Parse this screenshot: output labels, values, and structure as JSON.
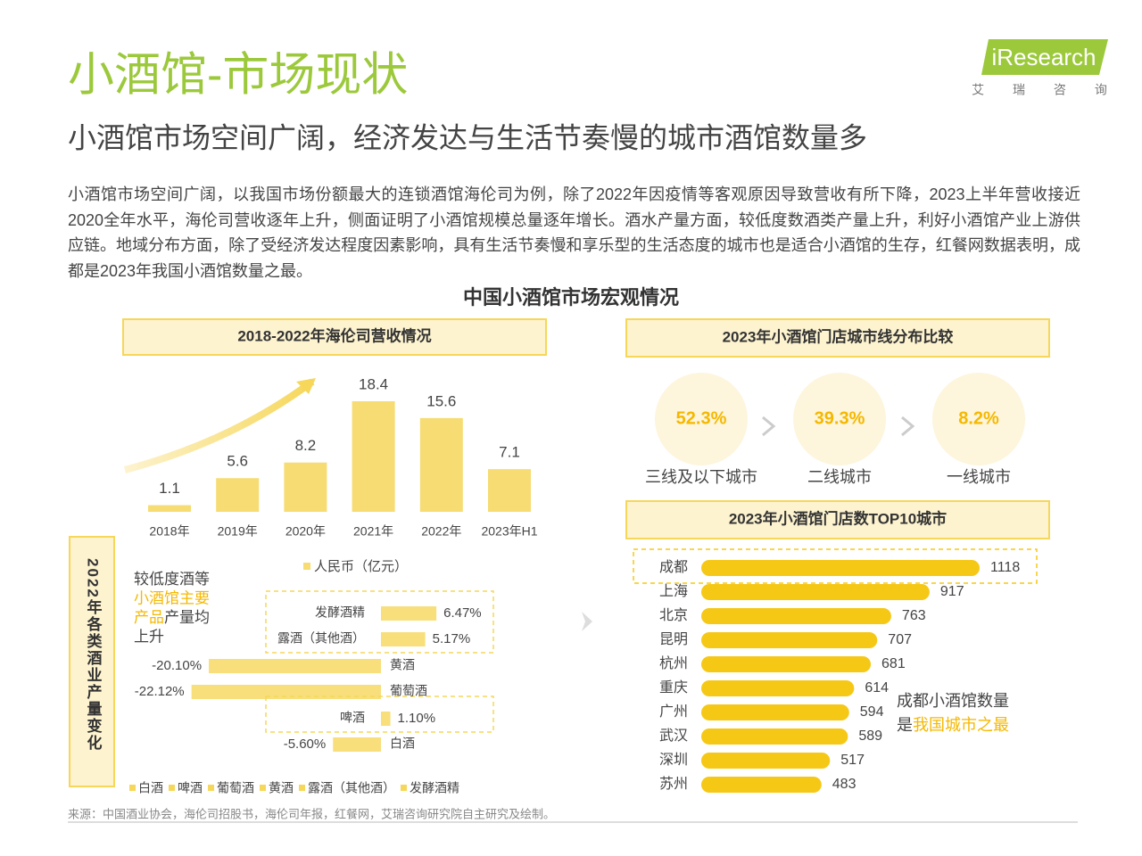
{
  "header": {
    "title": "小酒馆-市场现状",
    "subtitle": "小酒馆市场空间广阔，经济发达与生活节奏慢的城市酒馆数量多",
    "logo": "iResearch",
    "logo_cn": "艾 瑞 咨 询"
  },
  "intro": "小酒馆市场空间广阔，以我国市场份额最大的连锁酒馆海伦司为例，除了2022年因疫情等客观原因导致营收有所下降，2023上半年营收接近2020全年水平，海伦司营收逐年上升，侧面证明了小酒馆规模总量逐年增长。酒水产量方面，较低度数酒类产量上升，利好小酒馆产业上游供应链。地域分布方面，除了受经济发达程度因素影响，具有生活节奏慢和享乐型的生活态度的城市也是适合小酒馆的生存，红餐网数据表明，成都是2023年我国小酒馆数量之最。",
  "section_title": "中国小酒馆市场宏观情况",
  "source": "来源：中国酒业协会，海伦司招股书，海伦司年报，红餐网，艾瑞咨询研究院自主研究及绘制。",
  "chart_data": [
    {
      "type": "bar",
      "title": "2018-2022年海伦司营收情况",
      "categories": [
        "2018年",
        "2019年",
        "2020年",
        "2021年",
        "2022年",
        "2023年H1"
      ],
      "series": [
        {
          "name": "人民币（亿元）",
          "color": "#f6dc72",
          "values": [
            1.1,
            5.6,
            8.2,
            18.4,
            15.6,
            7.1
          ]
        }
      ]
    },
    {
      "type": "diverging_bar",
      "title": "2022年各类酒业产量变化",
      "categories": [
        "发酵酒精",
        "露酒（其他酒）",
        "黄酒",
        "葡萄酒",
        "啤酒",
        "白酒"
      ],
      "values": [
        6.47,
        5.17,
        -20.1,
        -22.12,
        1.1,
        -5.6
      ],
      "value_labels": [
        "6.47%",
        "5.17%",
        "-20.10%",
        "-22.12%",
        "1.10%",
        "-5.60%"
      ],
      "color": "#f6d75a",
      "legend": [
        "白酒",
        "啤酒",
        "葡萄酒",
        "黄酒",
        "露酒（其他酒）",
        "发酵酒精"
      ],
      "annotation": [
        [
          {
            "text": "较低度酒等",
            "color": "#444444"
          }
        ],
        [
          {
            "text": "小酒馆主要",
            "color": "#f5b800"
          }
        ],
        [
          {
            "text": "产品",
            "color": "#f5b800"
          },
          {
            "text": "产量均",
            "color": "#444444"
          }
        ],
        [
          {
            "text": "上升",
            "color": "#444444"
          }
        ]
      ]
    },
    {
      "type": "stat",
      "title": "2023年小酒馆门店城市线分布比较",
      "categories": [
        "三线及以下城市",
        "二线城市",
        "一线城市"
      ],
      "values": [
        52.3,
        39.3,
        8.2
      ],
      "value_labels": [
        "52.3%",
        "39.3%",
        "8.2%"
      ],
      "color": "#f5b800"
    },
    {
      "type": "hbar",
      "title": "2023年小酒馆门店数TOP10城市",
      "categories": [
        "成都",
        "上海",
        "北京",
        "昆明",
        "杭州",
        "重庆",
        "广州",
        "武汉",
        "深圳",
        "苏州"
      ],
      "values": [
        1118,
        917,
        763,
        707,
        681,
        614,
        594,
        589,
        517,
        483
      ],
      "color": "#f6c816",
      "annotation": [
        [
          {
            "text": "成都",
            "color": "#444444"
          },
          {
            "text": "小酒馆数量",
            "color": "#444444"
          }
        ],
        [
          {
            "text": "是",
            "color": "#444444"
          },
          {
            "text": "我国城市之最",
            "color": "#f5b800"
          }
        ]
      ]
    }
  ]
}
